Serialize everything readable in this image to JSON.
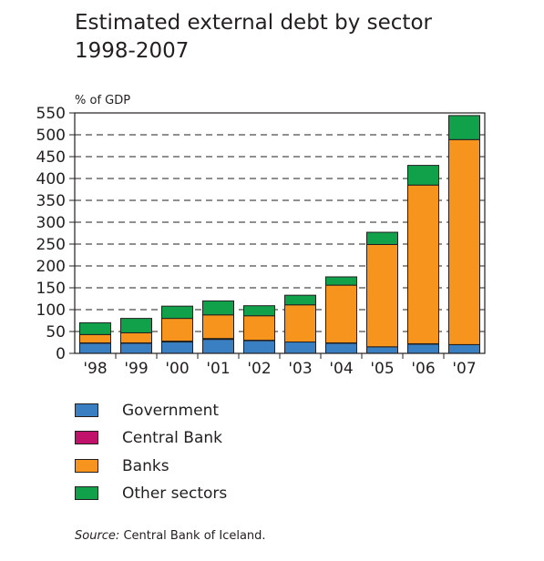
{
  "title_line1": "Estimated external debt by sector",
  "title_line2": "1998-2007",
  "source_label": "Source:",
  "source_text": " Central Bank of Iceland.",
  "colors": {
    "government": "#3a7fc1",
    "central_bank": "#c0126b",
    "banks": "#f7941d",
    "other_sectors": "#12a14b",
    "axis": "#231f20"
  },
  "chart_data": {
    "type": "bar",
    "stacked": true,
    "title": "Estimated external debt by sector 1998-2007",
    "ylabel": "% of GDP",
    "xlabel": "",
    "ylim": [
      0,
      550
    ],
    "yticks": [
      0,
      50,
      100,
      150,
      200,
      250,
      300,
      350,
      400,
      450,
      500,
      550
    ],
    "grid": "dashed horizontal",
    "legend": "bottom",
    "categories": [
      "'98",
      "'99",
      "'00",
      "'01",
      "'02",
      "'03",
      "'04",
      "'05",
      "'06",
      "'07"
    ],
    "series": [
      {
        "name": "Government",
        "color": "#3a7fc1",
        "values": [
          23,
          23,
          26,
          32,
          29,
          26,
          23,
          15,
          21,
          20
        ]
      },
      {
        "name": "Central Bank",
        "color": "#c0126b",
        "values": [
          1,
          1,
          2,
          2,
          1,
          0,
          1,
          0,
          1,
          0
        ]
      },
      {
        "name": "Banks",
        "color": "#f7941d",
        "values": [
          19,
          23,
          52,
          54,
          56,
          85,
          132,
          234,
          363,
          469
        ]
      },
      {
        "name": "Other sectors",
        "color": "#12a14b",
        "values": [
          27,
          33,
          28,
          32,
          23,
          22,
          19,
          28,
          45,
          55
        ]
      }
    ]
  }
}
